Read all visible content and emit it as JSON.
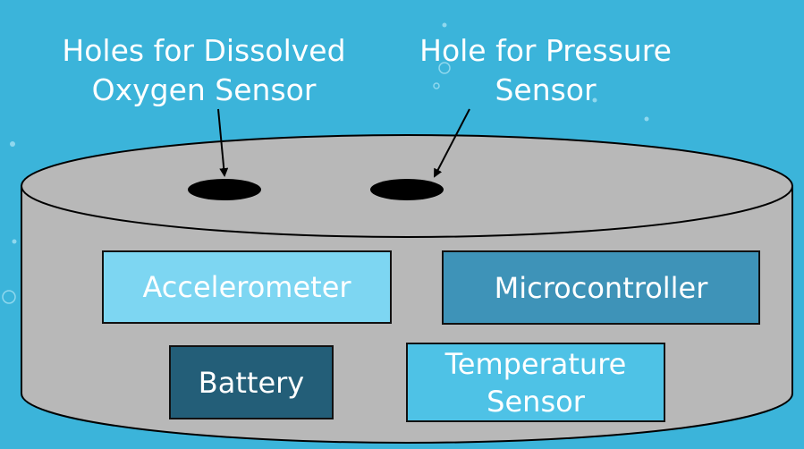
{
  "colors": {
    "background": "#3BB4DA",
    "cylinder": "#B8B8B8",
    "hole": "#000000",
    "accelerometer": "#7DD6F2",
    "microcontroller": "#3E93B8",
    "battery": "#235E78",
    "temperature_sensor": "#4EC2E6"
  },
  "labels": {
    "do_sensor_line1": "Holes for Dissolved",
    "do_sensor_line2": "Oxygen Sensor",
    "pressure_sensor_line1": "Hole for Pressure",
    "pressure_sensor_line2": "Sensor"
  },
  "components": {
    "accelerometer": "Accelerometer",
    "microcontroller": "Microcontroller",
    "battery": "Battery",
    "temperature_line1": "Temperature",
    "temperature_line2": "Sensor"
  }
}
